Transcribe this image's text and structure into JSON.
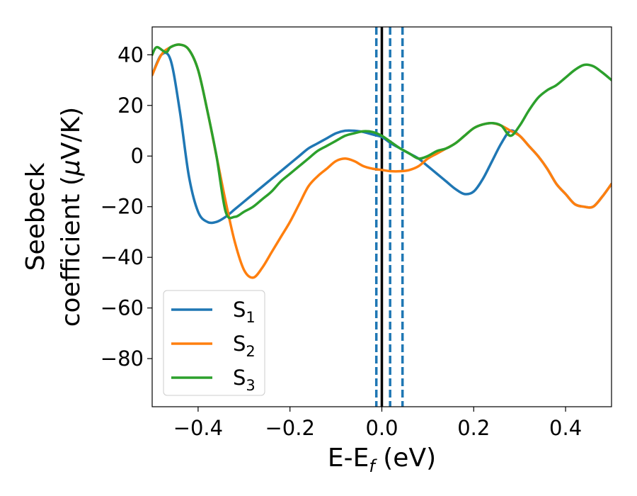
{
  "chart_data": {
    "type": "line",
    "xlabel": {
      "main": "E-E",
      "sub": "f",
      "suffix": " (eV)"
    },
    "ylabel": {
      "line1": "Seebeck",
      "line2_prefix": "coefficient  (",
      "mu": "μ",
      "line2_suffix": "V/K)"
    },
    "xlim": [
      -0.5,
      0.5
    ],
    "ylim": [
      -99,
      51
    ],
    "x_ticks": [
      -0.4,
      -0.2,
      0.0,
      0.2,
      0.4
    ],
    "x_tick_labels": [
      "−0.4",
      "−0.2",
      "0.0",
      "0.2",
      "0.4"
    ],
    "y_ticks": [
      40,
      20,
      0,
      -20,
      -40,
      -60,
      -80
    ],
    "y_tick_labels": [
      "40",
      "20",
      "0",
      "−20",
      "−40",
      "−60",
      "−80"
    ],
    "grid": false,
    "legend_position": "lower-left",
    "vertical_lines": [
      {
        "x": 0.0,
        "style": "solid",
        "color": "#000000"
      },
      {
        "x": -0.012,
        "style": "dashed",
        "color": "#1f77b4"
      },
      {
        "x": 0.018,
        "style": "dashed",
        "color": "#1f77b4"
      },
      {
        "x": 0.045,
        "style": "dashed",
        "color": "#1f77b4"
      }
    ],
    "series": [
      {
        "name": "S",
        "subscript": "1",
        "color": "#1f77b4",
        "points": [
          [
            -0.5,
            32
          ],
          [
            -0.48,
            40
          ],
          [
            -0.46,
            38
          ],
          [
            -0.44,
            18
          ],
          [
            -0.42,
            -8
          ],
          [
            -0.4,
            -22
          ],
          [
            -0.38,
            -26
          ],
          [
            -0.36,
            -26
          ],
          [
            -0.34,
            -24
          ],
          [
            -0.32,
            -21
          ],
          [
            -0.3,
            -18
          ],
          [
            -0.28,
            -15
          ],
          [
            -0.26,
            -12
          ],
          [
            -0.24,
            -9
          ],
          [
            -0.22,
            -6
          ],
          [
            -0.2,
            -3
          ],
          [
            -0.18,
            0
          ],
          [
            -0.16,
            3
          ],
          [
            -0.14,
            5
          ],
          [
            -0.12,
            7
          ],
          [
            -0.1,
            9
          ],
          [
            -0.08,
            10
          ],
          [
            -0.06,
            10
          ],
          [
            -0.04,
            9.5
          ],
          [
            -0.02,
            8.5
          ],
          [
            0.0,
            7.5
          ],
          [
            0.02,
            5
          ],
          [
            0.04,
            3
          ],
          [
            0.06,
            1
          ],
          [
            0.08,
            -1
          ],
          [
            0.1,
            -4
          ],
          [
            0.12,
            -7
          ],
          [
            0.14,
            -10
          ],
          [
            0.16,
            -13
          ],
          [
            0.18,
            -15
          ],
          [
            0.2,
            -14
          ],
          [
            0.22,
            -9
          ],
          [
            0.24,
            -2
          ],
          [
            0.26,
            5
          ],
          [
            0.28,
            10
          ],
          [
            0.3,
            8
          ],
          [
            0.32,
            4
          ],
          [
            0.34,
            0
          ],
          [
            0.36,
            -5
          ],
          [
            0.38,
            -11
          ],
          [
            0.4,
            -15
          ],
          [
            0.42,
            -19
          ],
          [
            0.44,
            -20
          ],
          [
            0.46,
            -20
          ],
          [
            0.48,
            -16
          ],
          [
            0.5,
            -11
          ]
        ]
      },
      {
        "name": "S",
        "subscript": "2",
        "color": "#ff7f0e",
        "points": [
          [
            -0.5,
            32
          ],
          [
            -0.48,
            40
          ],
          [
            -0.46,
            43
          ],
          [
            -0.44,
            44
          ],
          [
            -0.42,
            42
          ],
          [
            -0.4,
            34
          ],
          [
            -0.38,
            18
          ],
          [
            -0.36,
            0
          ],
          [
            -0.34,
            -18
          ],
          [
            -0.32,
            -34
          ],
          [
            -0.3,
            -45
          ],
          [
            -0.28,
            -48
          ],
          [
            -0.26,
            -44
          ],
          [
            -0.24,
            -38
          ],
          [
            -0.22,
            -32
          ],
          [
            -0.2,
            -26
          ],
          [
            -0.18,
            -19
          ],
          [
            -0.16,
            -12
          ],
          [
            -0.14,
            -8
          ],
          [
            -0.12,
            -5
          ],
          [
            -0.1,
            -2
          ],
          [
            -0.08,
            -1
          ],
          [
            -0.06,
            -2
          ],
          [
            -0.04,
            -4
          ],
          [
            -0.02,
            -5
          ],
          [
            0.0,
            -5.5
          ],
          [
            0.02,
            -6
          ],
          [
            0.04,
            -6
          ],
          [
            0.06,
            -5.5
          ],
          [
            0.08,
            -4
          ],
          [
            0.1,
            -1
          ],
          [
            0.12,
            1
          ],
          [
            0.14,
            3
          ],
          [
            0.16,
            5
          ],
          [
            0.18,
            8
          ],
          [
            0.2,
            11
          ],
          [
            0.22,
            12.5
          ],
          [
            0.24,
            13
          ],
          [
            0.26,
            12
          ],
          [
            0.28,
            10
          ],
          [
            0.3,
            8
          ],
          [
            0.32,
            4
          ],
          [
            0.34,
            0
          ],
          [
            0.36,
            -5
          ],
          [
            0.38,
            -11
          ],
          [
            0.4,
            -15
          ],
          [
            0.42,
            -19
          ],
          [
            0.44,
            -20
          ],
          [
            0.46,
            -20
          ],
          [
            0.48,
            -16
          ],
          [
            0.5,
            -11
          ]
        ]
      },
      {
        "name": "S",
        "subscript": "3",
        "color": "#2ca02c",
        "points": [
          [
            -0.5,
            40
          ],
          [
            -0.49,
            43
          ],
          [
            -0.47,
            41
          ],
          [
            -0.46,
            43
          ],
          [
            -0.44,
            44
          ],
          [
            -0.42,
            42
          ],
          [
            -0.4,
            34
          ],
          [
            -0.38,
            18
          ],
          [
            -0.36,
            0
          ],
          [
            -0.34,
            -22
          ],
          [
            -0.32,
            -24
          ],
          [
            -0.3,
            -22
          ],
          [
            -0.28,
            -20
          ],
          [
            -0.26,
            -17
          ],
          [
            -0.24,
            -14
          ],
          [
            -0.22,
            -10
          ],
          [
            -0.2,
            -7
          ],
          [
            -0.18,
            -4
          ],
          [
            -0.16,
            -1
          ],
          [
            -0.14,
            2
          ],
          [
            -0.12,
            4
          ],
          [
            -0.1,
            6
          ],
          [
            -0.08,
            8
          ],
          [
            -0.06,
            9
          ],
          [
            -0.04,
            9.8
          ],
          [
            -0.02,
            9.5
          ],
          [
            0.0,
            8
          ],
          [
            0.02,
            5.5
          ],
          [
            0.04,
            3
          ],
          [
            0.06,
            1
          ],
          [
            0.08,
            -1
          ],
          [
            0.1,
            0
          ],
          [
            0.12,
            2
          ],
          [
            0.14,
            3
          ],
          [
            0.16,
            5
          ],
          [
            0.18,
            8
          ],
          [
            0.2,
            11
          ],
          [
            0.22,
            12.5
          ],
          [
            0.24,
            13
          ],
          [
            0.26,
            12
          ],
          [
            0.28,
            8
          ],
          [
            0.3,
            12
          ],
          [
            0.32,
            18
          ],
          [
            0.34,
            23
          ],
          [
            0.36,
            26
          ],
          [
            0.38,
            28
          ],
          [
            0.4,
            31
          ],
          [
            0.42,
            34
          ],
          [
            0.44,
            36
          ],
          [
            0.46,
            35.5
          ],
          [
            0.48,
            33
          ],
          [
            0.5,
            30
          ]
        ]
      }
    ]
  }
}
